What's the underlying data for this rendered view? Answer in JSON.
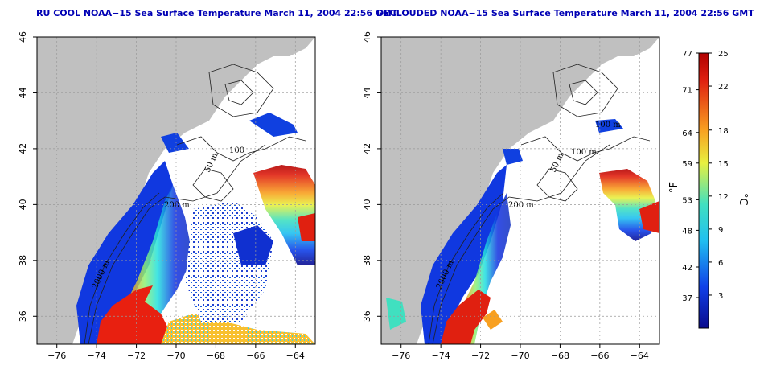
{
  "panels": [
    {
      "title": "RU COOL NOAA−15 Sea Surface Temperature March 11, 2004 22:56 GMT",
      "contour_labels": [
        "200 m",
        "100",
        "50 m",
        "2000 m"
      ]
    },
    {
      "title": "DECLOUDED NOAA−15 Sea Surface Temperature March 11, 2004 22:56 GMT",
      "contour_labels": [
        "200 m",
        "100 m",
        "50 m",
        "100 m",
        "2000 m"
      ]
    }
  ],
  "axes": {
    "x_ticks": [
      "−76",
      "−74",
      "−72",
      "−70",
      "−68",
      "−66",
      "−64"
    ],
    "x_values": [
      -76,
      -74,
      -72,
      -70,
      -68,
      -66,
      -64
    ],
    "x_range": [
      -77,
      -63
    ],
    "y_ticks": [
      "36",
      "38",
      "40",
      "42",
      "44",
      "46"
    ],
    "y_values": [
      36,
      38,
      40,
      42,
      44,
      46
    ],
    "y_range": [
      35,
      46
    ],
    "grid": "dotted"
  },
  "colorbar": {
    "fahrenheit_label": "°F",
    "celsius_label": "°C",
    "fahrenheit_ticks": [
      "77",
      "71",
      "64",
      "59",
      "53",
      "48",
      "42",
      "37"
    ],
    "fahrenheit_values": [
      77,
      71,
      64,
      59,
      53,
      48,
      42,
      37
    ],
    "celsius_ticks": [
      "25",
      "22",
      "18",
      "15",
      "12",
      "9",
      "6",
      "3"
    ],
    "celsius_values": [
      25,
      22,
      18,
      15,
      12,
      9,
      6,
      3
    ],
    "range_c": [
      0,
      25
    ],
    "colors": [
      "#0a0a8c",
      "#1030e0",
      "#1aa0f0",
      "#20e0e0",
      "#90f070",
      "#f0f040",
      "#f8a020",
      "#f03010",
      "#b00000"
    ]
  },
  "colors": {
    "land": "#c0c0c0",
    "cloud": "#ffffff",
    "contour": "#202020",
    "title": "#0000b4"
  }
}
